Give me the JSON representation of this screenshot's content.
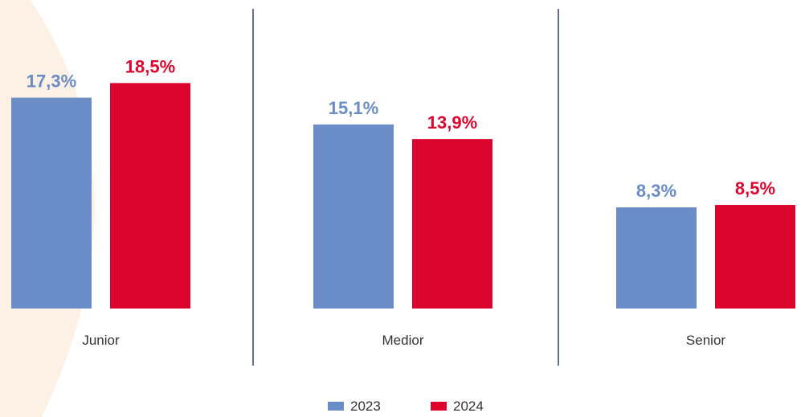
{
  "chart_data": {
    "type": "bar",
    "categories": [
      "Junior",
      "Medior",
      "Senior"
    ],
    "series": [
      {
        "name": "2023",
        "values": [
          17.3,
          15.1,
          8.3
        ],
        "labels": [
          "17,3%",
          "15,1%",
          "8,3%"
        ],
        "color": "#6A8CC7"
      },
      {
        "name": "2024",
        "values": [
          18.5,
          13.9,
          8.5
        ],
        "labels": [
          "18,5%",
          "13,9%",
          "8,5%"
        ],
        "color": "#DC052D"
      }
    ],
    "unit": "%",
    "ylim": [
      0,
      20
    ],
    "grid": false,
    "legend": "bottom-center"
  },
  "colors": {
    "background_shape": "#FDF0E4",
    "divider": "#2E4070"
  }
}
